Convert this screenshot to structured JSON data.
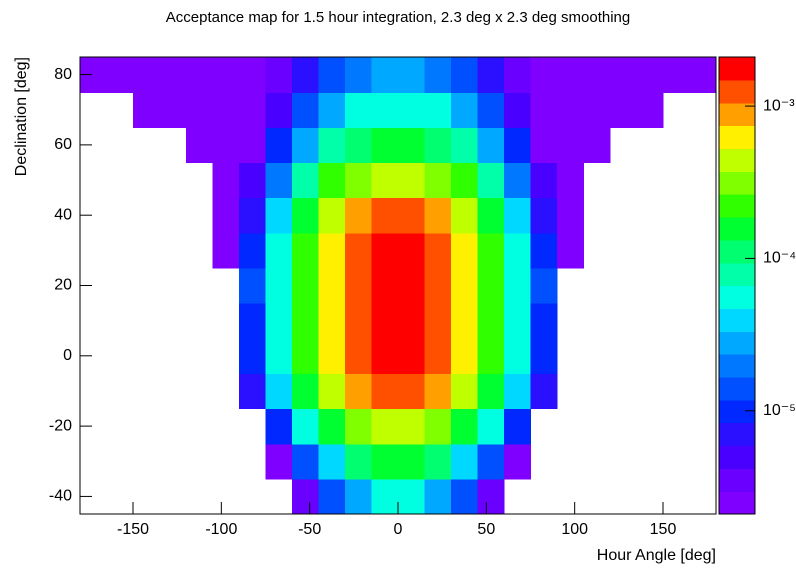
{
  "chart_data": {
    "type": "heatmap",
    "title": "Acceptance map for 1.5 hour integration, 2.3 deg x 2.3 deg smoothing",
    "xlabel": "Hour Angle [deg]",
    "ylabel": "Declination [deg]",
    "xlim": [
      -180,
      180
    ],
    "ylim": [
      -45,
      85
    ],
    "xticks": [
      -150,
      -100,
      -50,
      0,
      50,
      100,
      150
    ],
    "yticks": [
      -40,
      -20,
      0,
      20,
      40,
      60,
      80
    ],
    "zlim": [
      2.1e-06,
      0.0021
    ],
    "zscale": "log",
    "zticks": [
      {
        "value": 1e-05,
        "label": "10⁻⁵"
      },
      {
        "value": 0.0001,
        "label": "10⁻⁴"
      },
      {
        "value": 0.001,
        "label": "10⁻³"
      }
    ],
    "palette": [
      "#8000ff",
      "#6a00ff",
      "#4a00ff",
      "#2a10ff",
      "#0028ff",
      "#0050ff",
      "#0078ff",
      "#00a8ff",
      "#00d8ff",
      "#00ffe0",
      "#00ffa8",
      "#00ff70",
      "#00ff30",
      "#30ff00",
      "#80ff00",
      "#c0ff00",
      "#fff000",
      "#ffa000",
      "#ff5000",
      "#ff0000"
    ],
    "xbins": [
      -180,
      -165,
      -150,
      -135,
      -120,
      -105,
      -90,
      -75,
      -60,
      -45,
      -30,
      -15,
      0,
      15,
      30,
      45,
      60,
      75,
      90,
      105,
      120,
      135,
      150,
      165,
      180
    ],
    "ybins": [
      -45,
      -35,
      -25,
      -15,
      -5,
      5,
      15,
      25,
      35,
      45,
      55,
      65,
      75,
      85
    ],
    "z": [
      [
        null,
        null,
        null,
        null,
        null,
        null,
        null,
        null,
        3.8e-06,
        1.3e-05,
        3.1e-05,
        4.8e-05,
        4.8e-05,
        3.1e-05,
        1.3e-05,
        3.8e-06,
        null,
        null,
        null,
        null,
        null,
        null,
        null,
        null
      ],
      [
        null,
        null,
        null,
        null,
        null,
        null,
        null,
        2.7e-06,
        1.3e-05,
        4.5e-05,
        0.0001,
        0.00015,
        0.00015,
        0.0001,
        4.5e-05,
        1.3e-05,
        2.7e-06,
        null,
        null,
        null,
        null,
        null,
        null,
        null
      ],
      [
        null,
        null,
        null,
        null,
        null,
        null,
        null,
        1.1e-05,
        4.9e-05,
        0.00015,
        0.00033,
        0.00048,
        0.00048,
        0.00033,
        0.00015,
        4.9e-05,
        1.1e-05,
        null,
        null,
        null,
        null,
        null,
        null,
        null
      ],
      [
        null,
        null,
        null,
        null,
        null,
        null,
        6.3e-06,
        3.5e-05,
        0.00014,
        0.00039,
        0.00076,
        0.0011,
        0.0011,
        0.00076,
        0.00039,
        0.00014,
        3.5e-05,
        6.3e-06,
        null,
        null,
        null,
        null,
        null,
        null
      ],
      [
        null,
        null,
        null,
        null,
        null,
        null,
        1e-05,
        5.6e-05,
        0.00022,
        0.00061,
        0.0012,
        0.0017,
        0.0017,
        0.0012,
        0.00061,
        0.00022,
        5.6e-05,
        1e-05,
        null,
        null,
        null,
        null,
        null,
        null
      ],
      [
        null,
        null,
        null,
        null,
        null,
        null,
        1.1e-05,
        6.3e-05,
        0.00025,
        0.00068,
        0.0014,
        0.0019,
        0.0019,
        0.0014,
        0.00068,
        0.00025,
        6.3e-05,
        1.1e-05,
        null,
        null,
        null,
        null,
        null,
        null
      ],
      [
        null,
        null,
        null,
        null,
        null,
        null,
        1.2e-05,
        6.6e-05,
        0.00026,
        0.00072,
        0.0014,
        0.002,
        0.002,
        0.0014,
        0.00072,
        0.00026,
        6.6e-05,
        1.2e-05,
        null,
        null,
        null,
        null,
        null,
        null
      ],
      [
        null,
        null,
        null,
        null,
        null,
        2.5e-06,
        1e-05,
        5.6e-05,
        0.00022,
        0.00061,
        0.0012,
        0.0017,
        0.0017,
        0.0012,
        0.00061,
        0.00022,
        5.6e-05,
        1e-05,
        2.5e-06,
        null,
        null,
        null,
        null,
        null
      ],
      [
        null,
        null,
        null,
        null,
        null,
        2.5e-06,
        6.3e-06,
        3.5e-05,
        0.00014,
        0.00039,
        0.00076,
        0.0011,
        0.0011,
        0.00076,
        0.00039,
        0.00014,
        3.5e-05,
        6.3e-06,
        2.5e-06,
        null,
        null,
        null,
        null,
        null
      ],
      [
        null,
        null,
        null,
        null,
        null,
        2.5e-06,
        4.6e-06,
        2.2e-05,
        7.5e-05,
        0.00019,
        0.00035,
        0.00048,
        0.00048,
        0.00035,
        0.00019,
        7.5e-05,
        2.2e-05,
        4.6e-06,
        2.5e-06,
        null,
        null,
        null,
        null,
        null
      ],
      [
        null,
        null,
        null,
        null,
        2.5e-06,
        2.5e-06,
        2.5e-06,
        1e-05,
        3.2e-05,
        7.4e-05,
        0.00013,
        0.00017,
        0.00017,
        0.00013,
        7.4e-05,
        3.2e-05,
        1e-05,
        2.5e-06,
        2.5e-06,
        2.5e-06,
        null,
        null,
        null,
        null
      ],
      [
        null,
        null,
        2.5e-06,
        2.5e-06,
        2.5e-06,
        2.5e-06,
        2.5e-06,
        5.7e-06,
        1.5e-05,
        3e-05,
        4.8e-05,
        6.2e-05,
        6.2e-05,
        4.8e-05,
        3e-05,
        1.5e-05,
        5.7e-06,
        2.5e-06,
        2.5e-06,
        2.5e-06,
        2.5e-06,
        2.5e-06,
        null,
        null
      ],
      [
        2.5e-06,
        2.5e-06,
        2.5e-06,
        2.5e-06,
        2.5e-06,
        2.5e-06,
        2.5e-06,
        3.2e-06,
        7.2e-06,
        1.3e-05,
        2e-05,
        2.5e-05,
        2.5e-05,
        2e-05,
        1.3e-05,
        7.2e-06,
        3.2e-06,
        2.5e-06,
        2.5e-06,
        2.5e-06,
        2.5e-06,
        2.5e-06,
        2.5e-06,
        2.5e-06
      ]
    ]
  }
}
